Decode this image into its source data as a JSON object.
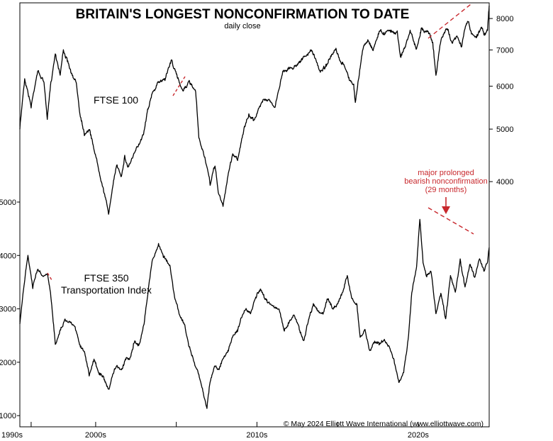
{
  "chart_data": {
    "type": "line",
    "title": "BRITAIN'S LONGEST NONCONFIRMATION TO DATE",
    "subtitle": "daily close",
    "credit": "© May 2024 Elliott Wave International (www.elliottwave.com)",
    "x_axis": {
      "ticks": [
        "1990s",
        "2000s",
        "2010s",
        "2020s"
      ],
      "tick_years": [
        1996,
        2000,
        2005,
        2010,
        2015,
        2020
      ],
      "label_years": [
        1995.3,
        2000,
        2010,
        2020
      ],
      "range": [
        1995.3,
        2024.4
      ]
    },
    "right_axis": {
      "ticks": [
        4000,
        5000,
        6000,
        7000,
        8000
      ],
      "range": [
        3300,
        8500
      ],
      "log": true
    },
    "left_axis": {
      "ticks": [
        1000,
        2000,
        3000,
        4000,
        5000
      ],
      "range": [
        950,
        5000
      ],
      "log": false
    },
    "annotation": {
      "lines": [
        "major prolonged",
        "bearish nonconfirmation",
        "(29 months)"
      ],
      "color": "#c8282d"
    },
    "series": [
      {
        "name": "FTSE 100",
        "axis": "right",
        "color": "#000000",
        "x": [
          1995.3,
          1995.6,
          1996.0,
          1996.4,
          1996.8,
          1997.0,
          1997.2,
          1997.5,
          1997.8,
          1998.0,
          1998.3,
          1998.6,
          1998.8,
          1999.0,
          1999.3,
          1999.6,
          1999.9,
          2000.2,
          2000.5,
          2000.8,
          2001.0,
          2001.3,
          2001.6,
          2001.8,
          2002.0,
          2002.4,
          2002.7,
          2003.0,
          2003.2,
          2003.5,
          2003.9,
          2004.3,
          2004.7,
          2005.0,
          2005.4,
          2005.8,
          2006.2,
          2006.4,
          2006.8,
          2007.1,
          2007.4,
          2007.6,
          2007.9,
          2008.2,
          2008.5,
          2008.8,
          2009.0,
          2009.2,
          2009.5,
          2009.8,
          2010.2,
          2010.4,
          2010.8,
          2011.1,
          2011.4,
          2011.6,
          2011.9,
          2012.3,
          2012.7,
          2013.0,
          2013.4,
          2013.6,
          2013.9,
          2014.2,
          2014.6,
          2014.9,
          2015.2,
          2015.4,
          2015.7,
          2016.0,
          2016.1,
          2016.4,
          2016.6,
          2016.9,
          2017.2,
          2017.6,
          2017.9,
          2018.1,
          2018.4,
          2018.7,
          2018.9,
          2019.2,
          2019.5,
          2019.9,
          2020.1,
          2020.2,
          2020.4,
          2020.7,
          2020.9,
          2021.1,
          2021.4,
          2021.8,
          2022.1,
          2022.4,
          2022.7,
          2022.9,
          2023.1,
          2023.3,
          2023.6,
          2023.9,
          2024.1,
          2024.3,
          2024.4
        ],
        "y": [
          5000,
          6200,
          5500,
          6400,
          6100,
          5200,
          6000,
          6900,
          6300,
          7000,
          6600,
          6200,
          6100,
          5400,
          4900,
          5000,
          4600,
          4200,
          3850,
          3500,
          3800,
          4300,
          4100,
          4450,
          4250,
          4500,
          4700,
          4950,
          5400,
          5800,
          6100,
          6200,
          6700,
          6300,
          5900,
          6100,
          5850,
          4800,
          4400,
          3950,
          4300,
          3820,
          3600,
          4100,
          4500,
          4400,
          4700,
          5000,
          5300,
          5200,
          5500,
          5700,
          5650,
          5450,
          6000,
          6400,
          6450,
          6500,
          6700,
          6800,
          7000,
          6750,
          6400,
          6500,
          6800,
          7000,
          6600,
          6600,
          6200,
          6000,
          5600,
          6500,
          7100,
          7300,
          7000,
          7600,
          7500,
          7650,
          7550,
          7550,
          6800,
          7100,
          7600,
          7000,
          7400,
          7700,
          7600,
          7550,
          7200,
          6250,
          7300,
          7700,
          7200,
          7400,
          7100,
          7700,
          7900,
          7500,
          7400,
          7700,
          7500,
          7600,
          8450
        ]
      },
      {
        "name": "FTSE 350 Transportation Index",
        "axis": "left",
        "color": "#000000",
        "x": [
          1995.3,
          1995.5,
          1995.8,
          1996.1,
          1996.4,
          1996.7,
          1997.0,
          1997.2,
          1997.5,
          1997.8,
          1998.1,
          1998.4,
          1998.7,
          1999.0,
          1999.3,
          1999.6,
          1999.9,
          2000.2,
          2000.5,
          2000.8,
          2001.0,
          2001.3,
          2001.6,
          2001.9,
          2002.1,
          2002.4,
          2002.7,
          2003.0,
          2003.2,
          2003.5,
          2003.9,
          2004.2,
          2004.6,
          2004.9,
          2005.2,
          2005.5,
          2005.8,
          2006.1,
          2006.4,
          2006.7,
          2006.9,
          2007.1,
          2007.4,
          2007.6,
          2007.9,
          2008.2,
          2008.5,
          2008.8,
          2009.0,
          2009.3,
          2009.6,
          2009.9,
          2010.2,
          2010.5,
          2010.8,
          2011.1,
          2011.4,
          2011.7,
          2012.0,
          2012.3,
          2012.6,
          2012.9,
          2013.2,
          2013.5,
          2013.8,
          2014.1,
          2014.4,
          2014.7,
          2015.0,
          2015.3,
          2015.6,
          2015.9,
          2016.2,
          2016.4,
          2016.7,
          2017.0,
          2017.3,
          2017.6,
          2017.9,
          2018.2,
          2018.5,
          2018.8,
          2019.1,
          2019.4,
          2019.6,
          2019.9,
          2020.1,
          2020.3,
          2020.5,
          2020.8,
          2021.1,
          2021.4,
          2021.7,
          2022.0,
          2022.3,
          2022.6,
          2022.9,
          2023.2,
          2023.5,
          2023.8,
          2024.1,
          2024.3,
          2024.4
        ],
        "y": [
          2700,
          3300,
          4000,
          3400,
          3750,
          3600,
          3650,
          3300,
          2350,
          2600,
          2800,
          2750,
          2700,
          2350,
          2200,
          1750,
          2050,
          1800,
          1700,
          1450,
          1700,
          1950,
          1850,
          2100,
          2050,
          2400,
          2300,
          2750,
          3200,
          3900,
          4200,
          4000,
          3800,
          3200,
          2900,
          2700,
          2300,
          2000,
          1750,
          1400,
          1150,
          1650,
          1950,
          1850,
          2050,
          2200,
          2500,
          2600,
          2800,
          3000,
          2900,
          3200,
          3350,
          3200,
          3100,
          3050,
          2950,
          2600,
          2750,
          2900,
          2650,
          2400,
          2800,
          3100,
          2950,
          2900,
          3200,
          3000,
          3100,
          3300,
          3600,
          3200,
          3050,
          2450,
          2600,
          2200,
          2400,
          2350,
          2400,
          2300,
          2050,
          1600,
          1800,
          2500,
          3300,
          3800,
          4700,
          3900,
          3600,
          3700,
          2900,
          3300,
          2800,
          3600,
          3300,
          3900,
          3400,
          3850,
          3600,
          3950,
          3700,
          3900,
          4150
        ]
      }
    ]
  },
  "labels": {
    "ftse100": "FTSE 100",
    "transport_line1": "FTSE 350",
    "transport_line2": "Transportation Index"
  },
  "icons": [
    "dashed-trend-line",
    "arrow-down-icon"
  ]
}
